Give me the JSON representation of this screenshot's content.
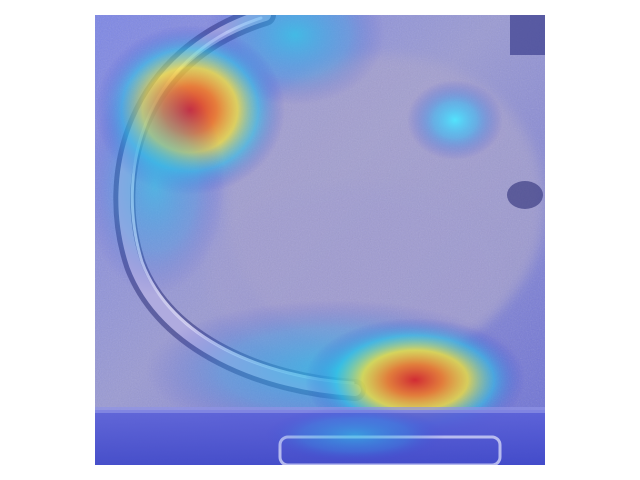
{
  "figure": {
    "subject": "frosted-freezer-interior-with-curved-tube",
    "overlay": "attention-heatmap",
    "colormap": "jet",
    "colors": {
      "background_page": "#ffffff",
      "frost_base": "#8f8fcf",
      "low_attention": "#3b3bd6",
      "mid_attention": "#29c6e8",
      "high_attention_1": "#f4e23a",
      "high_attention_2": "#f07a2a",
      "peak_attention": "#d7262b"
    }
  }
}
